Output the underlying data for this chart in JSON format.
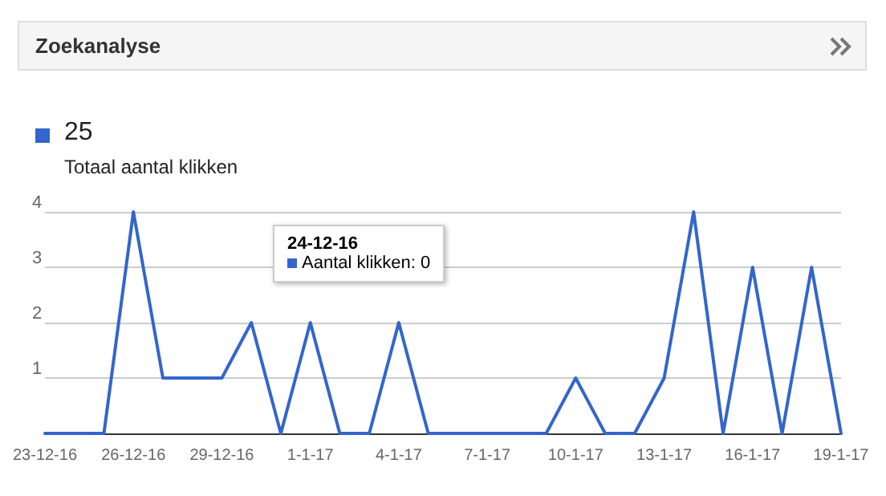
{
  "chart_data": {
    "type": "line",
    "title": "Zoekanalyse",
    "subtitle": "25",
    "categories": [
      "23-12-16",
      null,
      null,
      "26-12-16",
      null,
      null,
      "29-12-16",
      null,
      null,
      "1-1-17",
      null,
      null,
      "4-1-17",
      null,
      null,
      "7-1-17",
      null,
      null,
      "10-1-17",
      null,
      null,
      "13-1-17",
      null,
      null,
      "16-1-17",
      null,
      null,
      "19-1-17"
    ],
    "series": [
      {
        "name": "Totaal aantal klikken",
        "color": "#3366cc",
        "values": [
          0,
          0,
          0,
          4,
          1,
          1,
          1,
          2,
          0,
          2,
          0,
          0,
          2,
          0,
          0,
          0,
          0,
          0,
          1,
          0,
          0,
          1,
          4,
          0,
          3,
          0,
          3,
          0
        ]
      }
    ],
    "ylim": [
      0,
      4
    ],
    "yticks": [
      1,
      2,
      3,
      4
    ],
    "grid": "y",
    "legend": "top left",
    "marker": "none",
    "line_style": "solid",
    "annotations": [
      "24-12-16",
      "Aantal klikken: 0"
    ]
  }
}
